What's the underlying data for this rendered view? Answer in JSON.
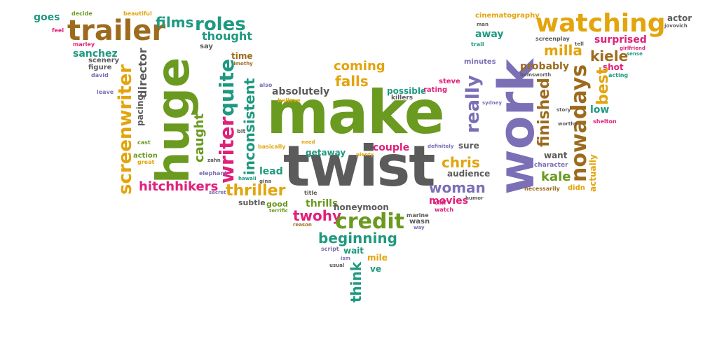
{
  "words": {
    "make": "make",
    "twist": "twist",
    "work": "work",
    "huge": "huge",
    "watching": "watching",
    "trailer": "trailer",
    "screenwriter": "screenwriter",
    "writer": "writer",
    "quite": "quite",
    "credit": "credit",
    "nowadays": "nowadays",
    "really": "really",
    "inconsistent": "inconsistent",
    "thriller": "thriller",
    "hitchhikers": "hitchhikers",
    "woman": "woman",
    "beginning": "beginning",
    "roles": "roles",
    "films": "films",
    "thought": "thought",
    "director": "director",
    "caught": "caught",
    "finished": "finished",
    "best": "best",
    "chris": "chris",
    "kale": "kale",
    "milla": "milla",
    "kiele": "kiele",
    "surprised": "surprised",
    "probably": "probably",
    "coming": "coming",
    "falls": "falls",
    "absolutely": "absolutely",
    "possible": "possible",
    "couple": "couple",
    "getaway": "getaway",
    "twohy": "twohy",
    "honeymoon": "honeymoon",
    "movies": "movies",
    "audience": "audience",
    "think": "think",
    "sanchez": "sanchez",
    "goes": "goes",
    "away": "away",
    "cinematography": "cinematography",
    "actor": "actor",
    "want": "want",
    "actually": "actually",
    "low": "low",
    "shot": "shot",
    "character": "character",
    "necessarily": "necessarily",
    "didn": "didn",
    "good": "good",
    "lead": "lead",
    "subtle": "subtle",
    "mile": "mile",
    "wait": "wait",
    "ve": "ve",
    "sure": "sure",
    "thrills": "thrills",
    "pacing": "pacing",
    "action": "action",
    "time": "time",
    "say": "say",
    "scenery": "scenery",
    "figure": "figure",
    "decide": "decide",
    "beautiful": "beautiful",
    "feel": "feel",
    "marley": "marley",
    "david": "david",
    "leave": "leave",
    "timothy": "timothy",
    "also": "also",
    "believe": "believe",
    "steve": "steve",
    "rating": "rating",
    "killers": "killers",
    "minutes": "minutes",
    "trail": "trail",
    "man": "man",
    "screenplay": "screenplay",
    "tell": "tell",
    "jovovich": "jovovich",
    "girlfriend": "girlfriend",
    "sense": "sense",
    "acting": "acting",
    "hemsworth": "hemsworth",
    "story": "story",
    "worthy": "worthy",
    "shelton": "shelton",
    "sydney": "sydney",
    "definitely": "definitely",
    "plenty": "plenty",
    "need": "need",
    "basically": "basically",
    "bit": "bit",
    "cast": "cast",
    "great": "great",
    "zahn": "zahn",
    "elephant": "elephant",
    "hawaii": "hawaii",
    "gina": "gina",
    "secret": "secret",
    "terrific": "terrific",
    "reason": "reason",
    "title": "title",
    "marine": "marine",
    "wasn": "wasn",
    "way": "way",
    "cliff": "cliff",
    "watch": "watch",
    "humor": "humor",
    "script": "script",
    "ism": "ism",
    "usual": "usual"
  },
  "colors": {
    "green": "#6a9a1f",
    "teal": "#1e9980",
    "brown": "#9c6b1d",
    "orange": "#e3a40c",
    "purple": "#7b6fb6",
    "pink": "#e0207a",
    "gray": "#5b5b5b",
    "background": "#ffffff"
  }
}
